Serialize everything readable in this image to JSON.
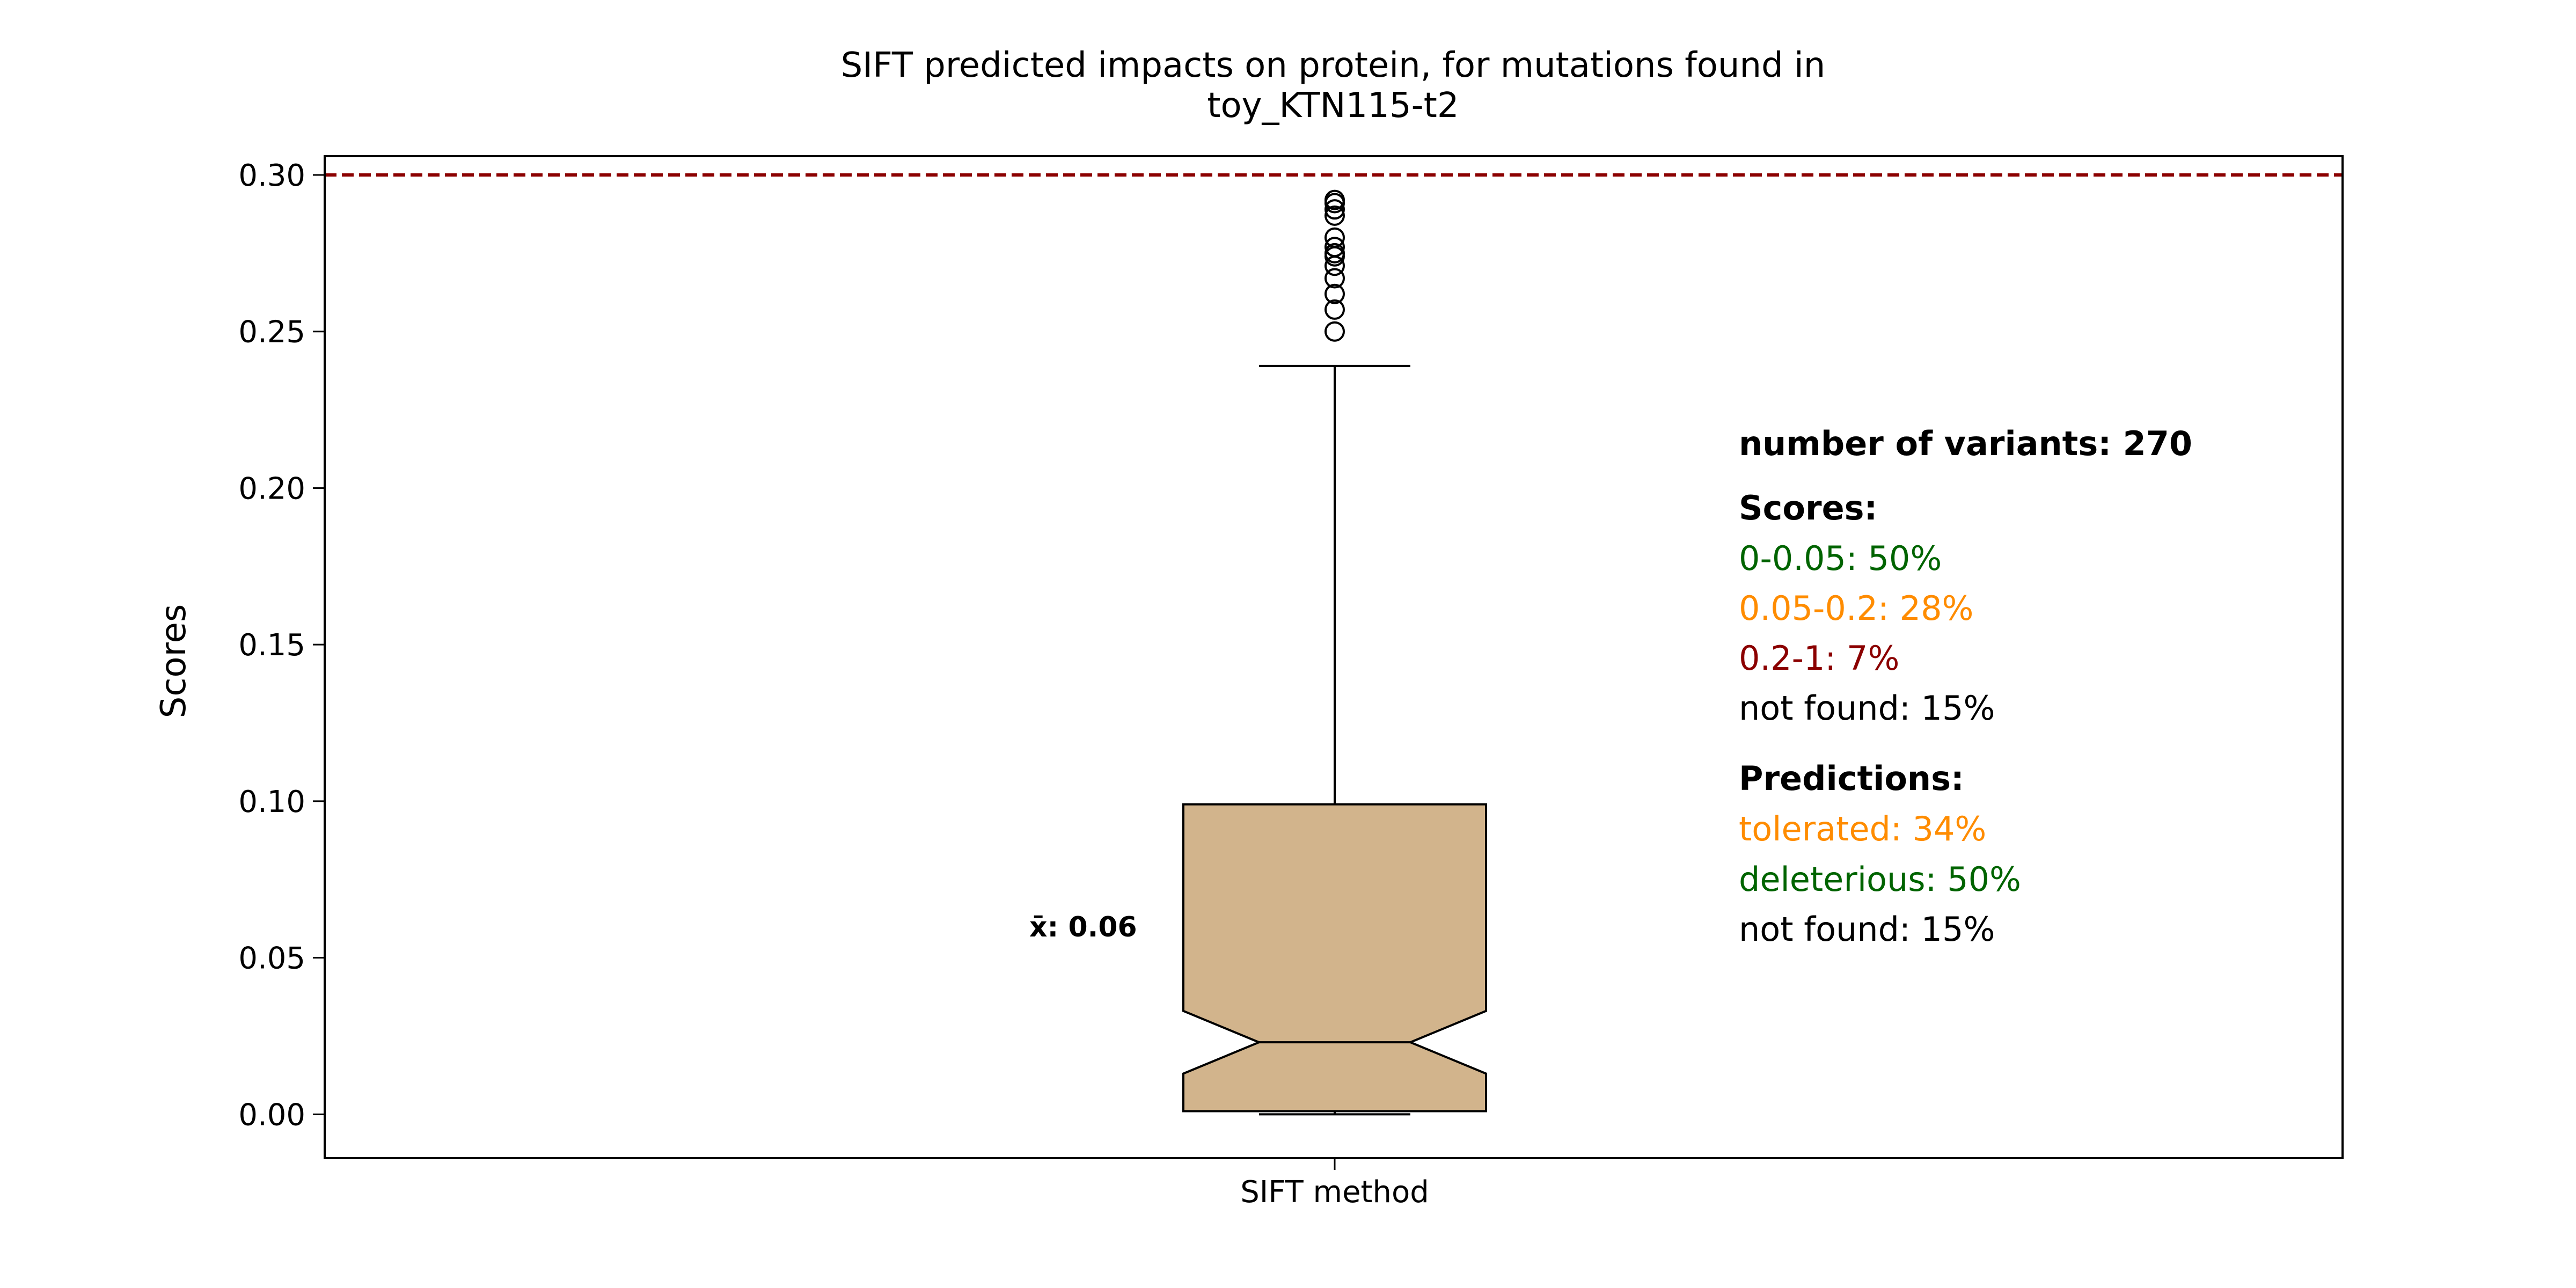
{
  "chart_data": {
    "type": "box",
    "title_lines": [
      "SIFT predicted impacts on protein, for mutations found in",
      "toy_KTN115-t2"
    ],
    "xlabel": "",
    "ylabel": "Scores",
    "categories": [
      "SIFT method"
    ],
    "ylim": [
      -0.014,
      0.306
    ],
    "yticks": [
      0.0,
      0.05,
      0.1,
      0.15,
      0.2,
      0.25,
      0.3
    ],
    "ytick_labels": [
      "0.00",
      "0.05",
      "0.10",
      "0.15",
      "0.20",
      "0.25",
      "0.30"
    ],
    "grid": false,
    "notched": true,
    "box": {
      "q1": 0.001,
      "median": 0.023,
      "q3": 0.099,
      "notch_low": 0.013,
      "notch_high": 0.033,
      "whisker_low": 0.0,
      "whisker_high": 0.239,
      "fill_color": "#d2b48c",
      "outliers": [
        0.25,
        0.257,
        0.262,
        0.267,
        0.271,
        0.274,
        0.275,
        0.277,
        0.28,
        0.287,
        0.289,
        0.291,
        0.292
      ]
    },
    "threshold_line": {
      "y": 0.3,
      "color": "#8b0000",
      "style": "dashed"
    },
    "mean_label": "x̄: 0.06",
    "annotations": {
      "variants": "number of variants: 270",
      "scores_header": "Scores:",
      "scores": [
        {
          "text": "0-0.05: 50%",
          "color": "#006400"
        },
        {
          "text": "0.05-0.2: 28%",
          "color": "#ff8c00"
        },
        {
          "text": "0.2-1: 7%",
          "color": "#8b0000"
        },
        {
          "text": "not found: 15%",
          "color": "#000000"
        }
      ],
      "predictions_header": "Predictions:",
      "predictions": [
        {
          "text": "tolerated: 34%",
          "color": "#ff8c00"
        },
        {
          "text": "deleterious: 50%",
          "color": "#006400"
        },
        {
          "text": "not found: 15%",
          "color": "#000000"
        }
      ]
    }
  }
}
